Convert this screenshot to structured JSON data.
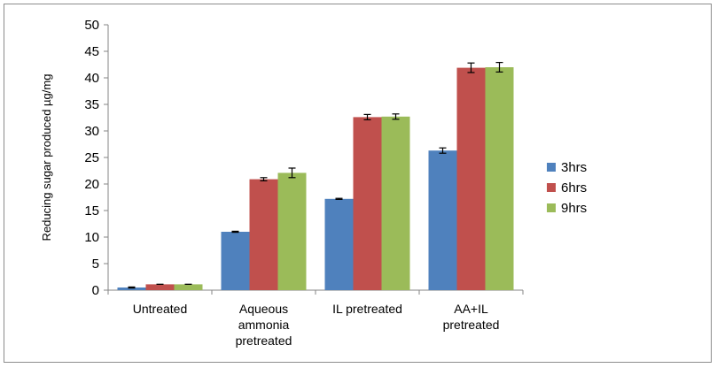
{
  "chart_data": {
    "type": "bar",
    "title": "",
    "xlabel": "",
    "ylabel": "Reducing sugar produced µg/mg",
    "ylim": [
      0,
      50
    ],
    "yticks": [
      0,
      5,
      10,
      15,
      20,
      25,
      30,
      35,
      40,
      45,
      50
    ],
    "grid": false,
    "legend_position": "right",
    "categories": [
      [
        "Untreated"
      ],
      [
        "Aqueous",
        "ammonia",
        "pretreated"
      ],
      [
        "IL pretreated"
      ],
      [
        "AA+IL",
        "pretreated"
      ]
    ],
    "series": [
      {
        "name": "3hrs",
        "color": "#4f81bd",
        "values": [
          0.5,
          11.0,
          17.2,
          26.3
        ],
        "errors": [
          0.1,
          0.1,
          0.1,
          0.5
        ]
      },
      {
        "name": "6hrs",
        "color": "#c0504d",
        "values": [
          1.1,
          20.9,
          32.6,
          41.9
        ],
        "errors": [
          0.0,
          0.3,
          0.5,
          0.9
        ]
      },
      {
        "name": "9hrs",
        "color": "#9bbb59",
        "values": [
          1.1,
          22.1,
          32.7,
          42.0
        ],
        "errors": [
          0.0,
          0.9,
          0.5,
          0.9
        ]
      }
    ]
  }
}
